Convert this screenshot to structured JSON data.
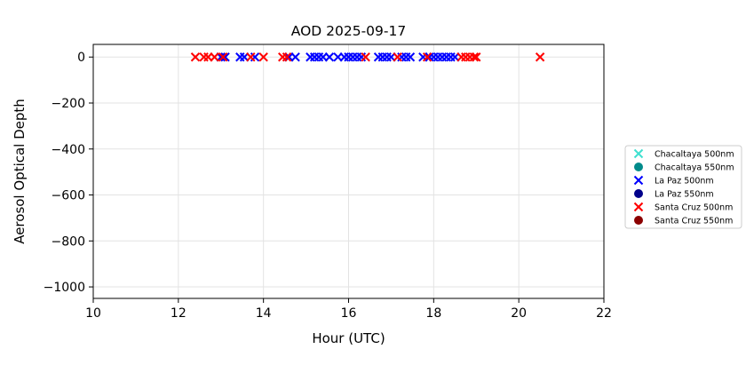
{
  "chart_data": {
    "type": "scatter",
    "title": "AOD 2025-09-17",
    "xlabel": "Hour (UTC)",
    "ylabel": "Aerosol Optical Depth",
    "xlim": [
      10,
      22
    ],
    "ylim": [
      -1050,
      55
    ],
    "xticks": [
      10,
      12,
      14,
      16,
      18,
      20,
      22
    ],
    "yticks": [
      0,
      -200,
      -400,
      -600,
      -800,
      -1000
    ],
    "xtick_labels": [
      "10",
      "12",
      "14",
      "16",
      "18",
      "20",
      "22"
    ],
    "ytick_labels": [
      "0",
      "−200",
      "−400",
      "−600",
      "−800",
      "−1000"
    ],
    "grid": true,
    "legend_position": "right",
    "series": [
      {
        "name": "Chacaltaya 500nm",
        "marker": "x",
        "color": "#40e0d0",
        "points": []
      },
      {
        "name": "Chacaltaya 550nm",
        "marker": "circle",
        "color": "#008b8b",
        "points": []
      },
      {
        "name": "La Paz 500nm",
        "marker": "x",
        "color": "#0000ff",
        "points": [
          [
            13.0,
            0
          ],
          [
            13.1,
            0
          ],
          [
            13.45,
            0
          ],
          [
            13.55,
            0
          ],
          [
            13.8,
            0
          ],
          [
            14.6,
            0
          ],
          [
            14.75,
            0
          ],
          [
            15.1,
            0
          ],
          [
            15.2,
            0
          ],
          [
            15.3,
            0
          ],
          [
            15.4,
            0
          ],
          [
            15.55,
            0
          ],
          [
            15.75,
            0
          ],
          [
            15.9,
            0
          ],
          [
            16.0,
            0
          ],
          [
            16.1,
            0
          ],
          [
            16.2,
            0
          ],
          [
            16.3,
            0
          ],
          [
            16.7,
            0
          ],
          [
            16.8,
            0
          ],
          [
            16.9,
            0
          ],
          [
            17.0,
            0
          ],
          [
            17.25,
            0
          ],
          [
            17.35,
            0
          ],
          [
            17.45,
            0
          ],
          [
            17.75,
            0
          ],
          [
            17.9,
            0
          ],
          [
            18.0,
            0
          ],
          [
            18.1,
            0
          ],
          [
            18.2,
            0
          ],
          [
            18.3,
            0
          ],
          [
            18.4,
            0
          ],
          [
            18.5,
            0
          ]
        ]
      },
      {
        "name": "La Paz 550nm",
        "marker": "circle",
        "color": "#00008b",
        "points": []
      },
      {
        "name": "Santa Cruz 500nm",
        "marker": "x",
        "color": "#ff0000",
        "points": [
          [
            12.4,
            0
          ],
          [
            12.6,
            0
          ],
          [
            12.7,
            0
          ],
          [
            12.85,
            0
          ],
          [
            13.05,
            0
          ],
          [
            13.7,
            0
          ],
          [
            14.0,
            0
          ],
          [
            14.45,
            0
          ],
          [
            14.55,
            0
          ],
          [
            16.4,
            0
          ],
          [
            17.15,
            0
          ],
          [
            17.85,
            0
          ],
          [
            18.65,
            0
          ],
          [
            18.75,
            0
          ],
          [
            18.85,
            0
          ],
          [
            18.95,
            0
          ],
          [
            19.0,
            0
          ],
          [
            20.5,
            0
          ]
        ]
      },
      {
        "name": "Santa Cruz 550nm",
        "marker": "circle",
        "color": "#8b0000",
        "points": []
      }
    ]
  }
}
